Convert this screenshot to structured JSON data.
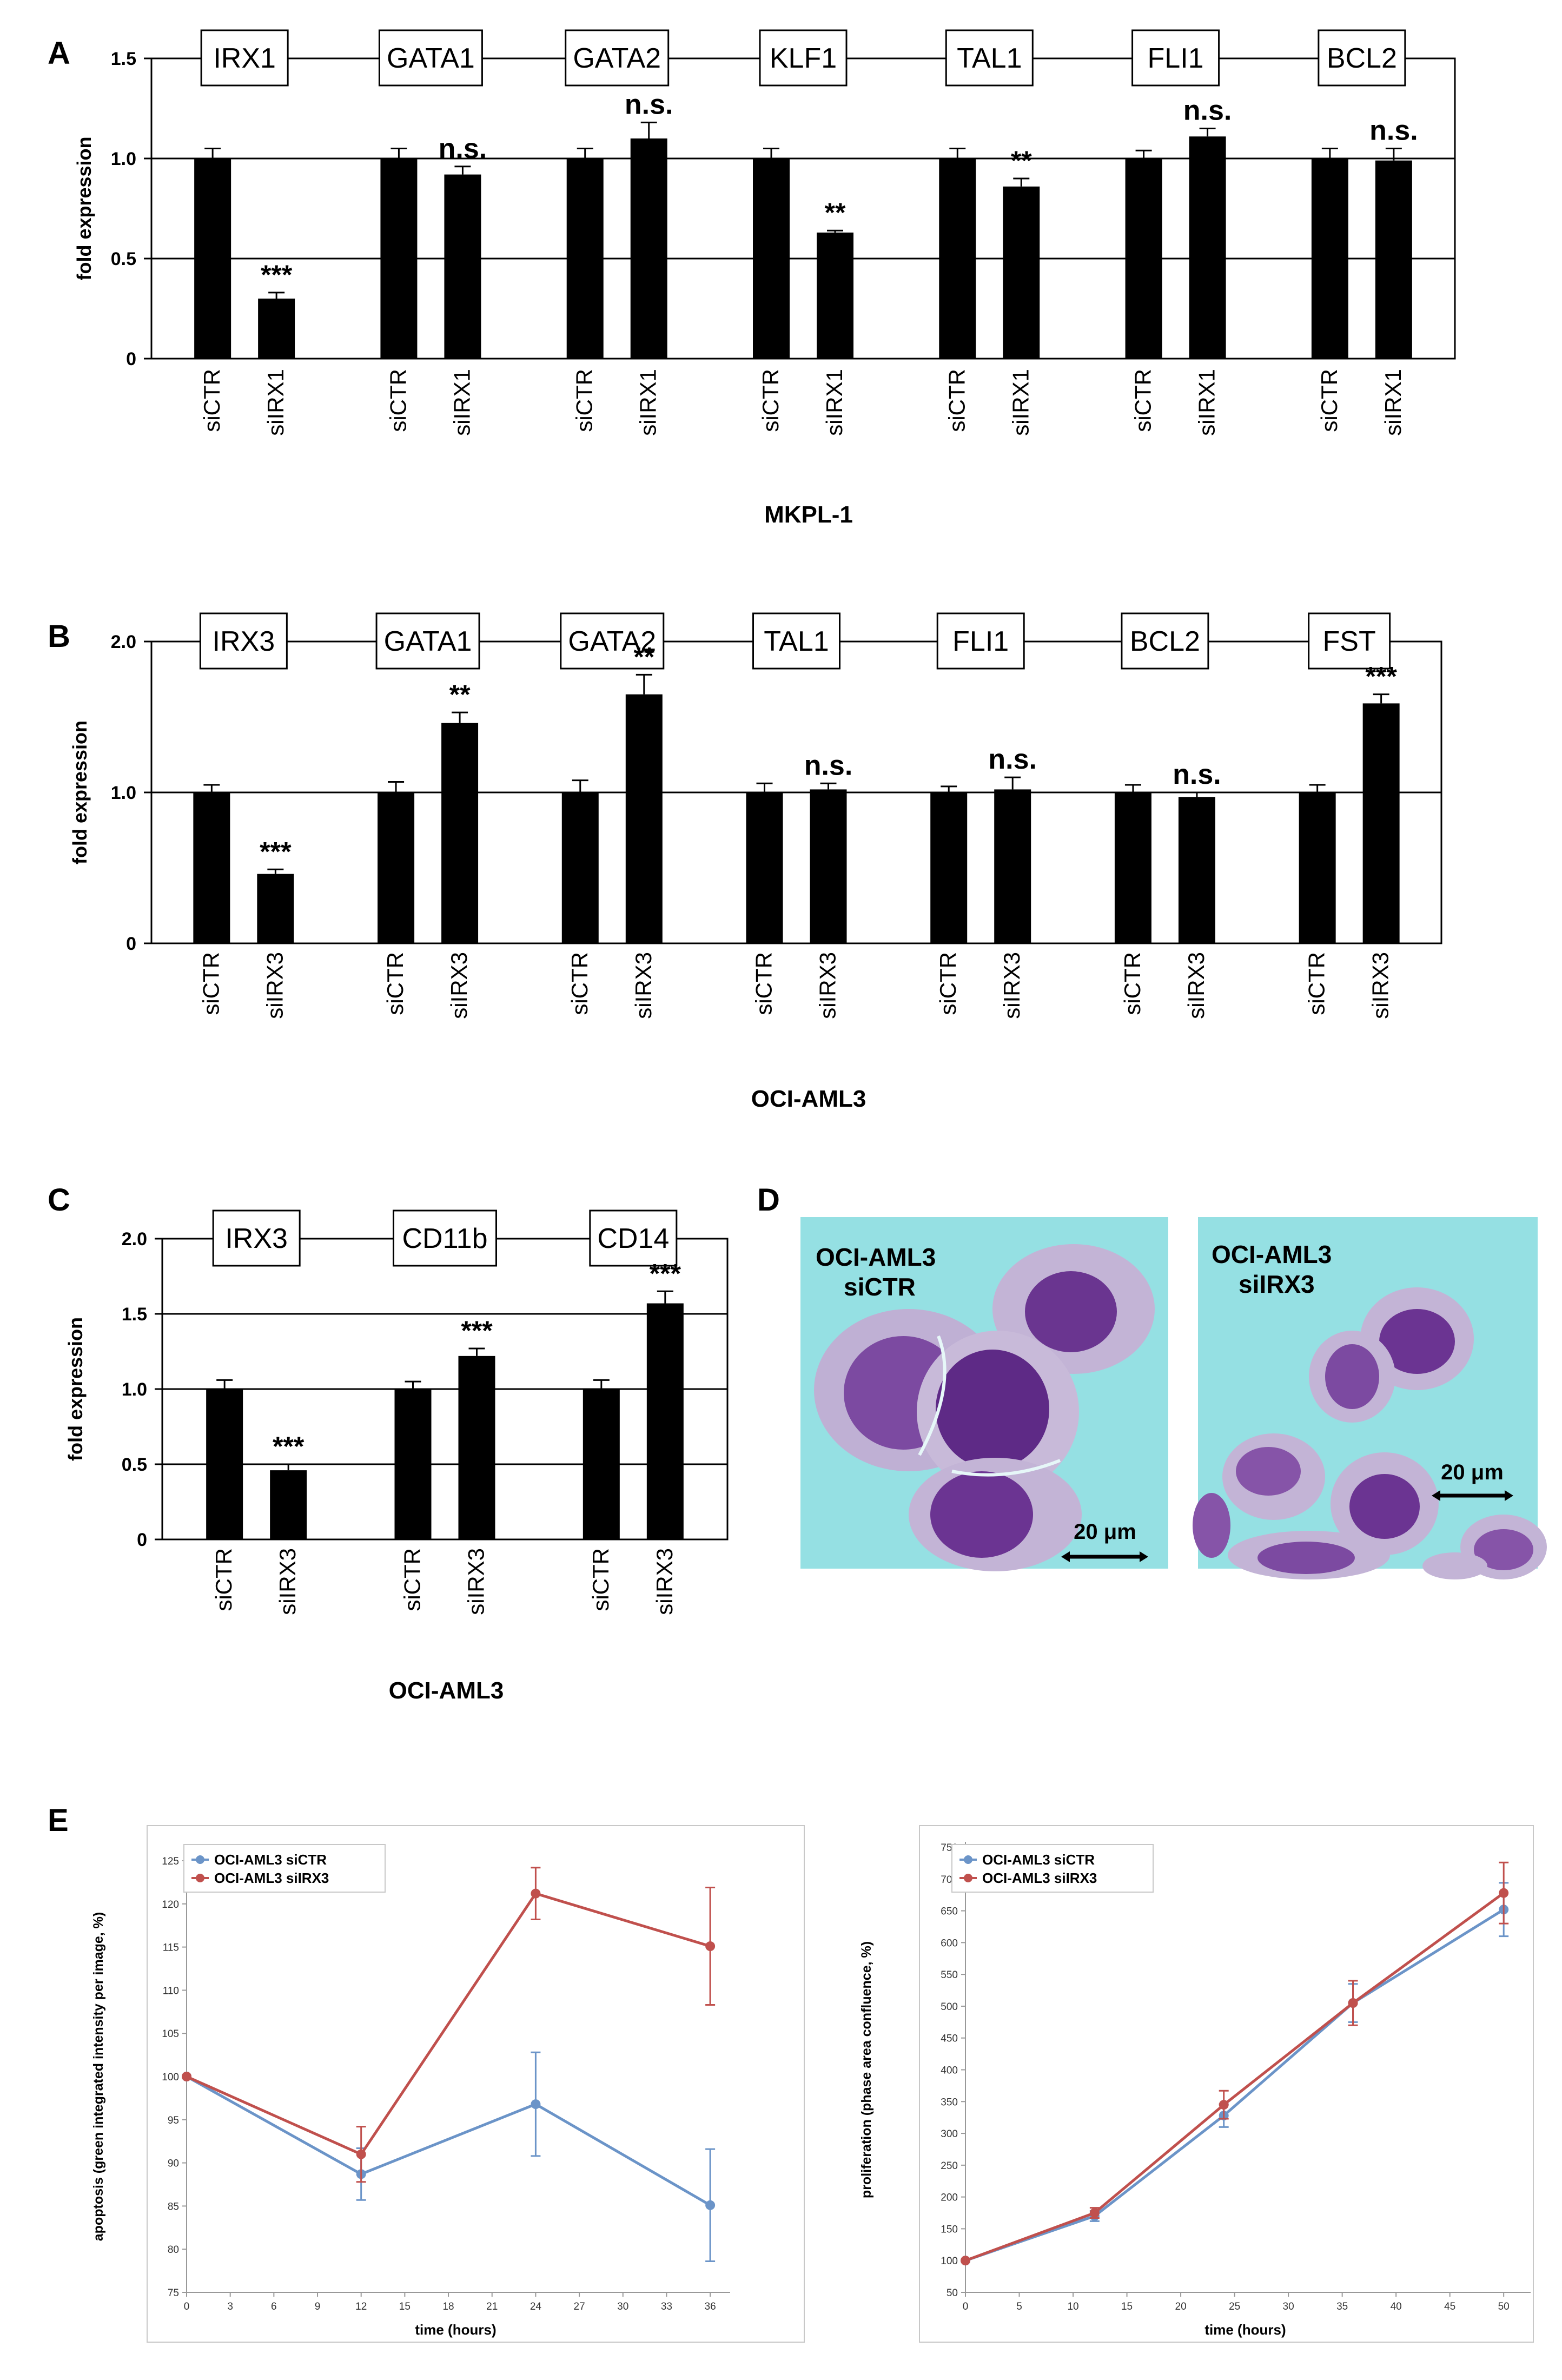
{
  "figure": {
    "panels": {
      "A": "A",
      "B": "B",
      "C": "C",
      "D": "D",
      "E": "E"
    },
    "colors": {
      "bar": "#000000",
      "siCTR_line": "#6b94c8",
      "siIRX3_line": "#c0504d",
      "micro_bg": "#95e0e3",
      "micro_cell": "#8a5fa5",
      "micro_nucleus": "#5b2d83",
      "micro_cyto": "#c7b6d6"
    }
  },
  "chart_data": [
    {
      "panel": "A",
      "type": "bar",
      "title": "MKPL-1",
      "ylabel": "fold expression",
      "ylim": [
        0,
        1.5
      ],
      "yticks": [
        "0",
        "0.5",
        "1.0",
        "1.5"
      ],
      "groups": [
        {
          "gene": "IRX1",
          "categories": [
            "siCTR",
            "siIRX1"
          ],
          "values": [
            1.0,
            0.3
          ],
          "errors": [
            0.05,
            0.03
          ],
          "significance": "***"
        },
        {
          "gene": "GATA1",
          "categories": [
            "siCTR",
            "siIRX1"
          ],
          "values": [
            1.0,
            0.92
          ],
          "errors": [
            0.05,
            0.04
          ],
          "significance": "n.s."
        },
        {
          "gene": "GATA2",
          "categories": [
            "siCTR",
            "siIRX1"
          ],
          "values": [
            1.0,
            1.1
          ],
          "errors": [
            0.05,
            0.08
          ],
          "significance": "n.s."
        },
        {
          "gene": "KLF1",
          "categories": [
            "siCTR",
            "siIRX1"
          ],
          "values": [
            1.0,
            0.63
          ],
          "errors": [
            0.05,
            0.01
          ],
          "significance": "**"
        },
        {
          "gene": "TAL1",
          "categories": [
            "siCTR",
            "siIRX1"
          ],
          "values": [
            1.0,
            0.86
          ],
          "errors": [
            0.05,
            0.04
          ],
          "significance": "**"
        },
        {
          "gene": "FLI1",
          "categories": [
            "siCTR",
            "siIRX1"
          ],
          "values": [
            1.0,
            1.11
          ],
          "errors": [
            0.04,
            0.04
          ],
          "significance": "n.s."
        },
        {
          "gene": "BCL2",
          "categories": [
            "siCTR",
            "siIRX1"
          ],
          "values": [
            1.0,
            0.99
          ],
          "errors": [
            0.05,
            0.06
          ],
          "significance": "n.s."
        }
      ]
    },
    {
      "panel": "B",
      "type": "bar",
      "title": "OCI-AML3",
      "ylabel": "fold expression",
      "ylim": [
        0,
        2.0
      ],
      "yticks": [
        "0",
        "1.0",
        "2.0"
      ],
      "groups": [
        {
          "gene": "IRX3",
          "categories": [
            "siCTR",
            "siIRX3"
          ],
          "values": [
            1.0,
            0.46
          ],
          "errors": [
            0.05,
            0.03
          ],
          "significance": "***"
        },
        {
          "gene": "GATA1",
          "categories": [
            "siCTR",
            "siIRX3"
          ],
          "values": [
            1.0,
            1.46
          ],
          "errors": [
            0.07,
            0.07
          ],
          "significance": "**"
        },
        {
          "gene": "GATA2",
          "categories": [
            "siCTR",
            "siIRX3"
          ],
          "values": [
            1.0,
            1.65
          ],
          "errors": [
            0.08,
            0.13
          ],
          "significance": "**"
        },
        {
          "gene": "TAL1",
          "categories": [
            "siCTR",
            "siIRX3"
          ],
          "values": [
            1.0,
            1.02
          ],
          "errors": [
            0.06,
            0.04
          ],
          "significance": "n.s."
        },
        {
          "gene": "FLI1",
          "categories": [
            "siCTR",
            "siIRX3"
          ],
          "values": [
            1.0,
            1.02
          ],
          "errors": [
            0.04,
            0.08
          ],
          "significance": "n.s."
        },
        {
          "gene": "BCL2",
          "categories": [
            "siCTR",
            "siIRX3"
          ],
          "values": [
            1.0,
            0.97
          ],
          "errors": [
            0.05,
            0.03
          ],
          "significance": "n.s."
        },
        {
          "gene": "FST",
          "categories": [
            "siCTR",
            "siIRX3"
          ],
          "values": [
            1.0,
            1.59
          ],
          "errors": [
            0.05,
            0.06
          ],
          "significance": "***"
        }
      ]
    },
    {
      "panel": "C",
      "type": "bar",
      "title": "OCI-AML3",
      "ylabel": "fold expression",
      "ylim": [
        0,
        2.0
      ],
      "yticks": [
        "0",
        "0.5",
        "1.0",
        "1.5",
        "2.0"
      ],
      "groups": [
        {
          "gene": "IRX3",
          "categories": [
            "siCTR",
            "siIRX3"
          ],
          "values": [
            1.0,
            0.46
          ],
          "errors": [
            0.06,
            0.04
          ],
          "significance": "***"
        },
        {
          "gene": "CD11b",
          "categories": [
            "siCTR",
            "siIRX3"
          ],
          "values": [
            1.0,
            1.22
          ],
          "errors": [
            0.05,
            0.05
          ],
          "significance": "***"
        },
        {
          "gene": "CD14",
          "categories": [
            "siCTR",
            "siIRX3"
          ],
          "values": [
            1.0,
            1.57
          ],
          "errors": [
            0.06,
            0.08
          ],
          "significance": "***"
        }
      ]
    },
    {
      "panel": "E-left",
      "type": "line",
      "xlabel": "time (hours)",
      "ylabel": "apoptosis (green integrated intensity per image, %)",
      "xlim": [
        0,
        37
      ],
      "ylim": [
        75,
        125
      ],
      "xticks": [
        0,
        3,
        6,
        9,
        12,
        15,
        18,
        21,
        24,
        27,
        30,
        33,
        36
      ],
      "yticks": [
        75,
        80,
        85,
        90,
        95,
        100,
        105,
        110,
        115,
        120,
        125
      ],
      "legend": [
        "OCI-AML3 siCTR",
        "OCI-AML3 siIRX3"
      ],
      "series": [
        {
          "name": "OCI-AML3 siCTR",
          "x": [
            0,
            12,
            24,
            36
          ],
          "values": [
            100,
            88.7,
            96.8,
            85.1
          ],
          "errors": [
            0,
            3.0,
            6.0,
            6.5
          ]
        },
        {
          "name": "OCI-AML3 siIRX3",
          "x": [
            0,
            12,
            24,
            36
          ],
          "values": [
            100,
            91.0,
            121.2,
            115.1
          ],
          "errors": [
            0,
            3.2,
            3.0,
            6.8
          ]
        }
      ]
    },
    {
      "panel": "E-right",
      "type": "line",
      "xlabel": "time (hours)",
      "ylabel": "proliferation (phase area confluence, %)",
      "xlim": [
        0,
        52
      ],
      "ylim": [
        50,
        750
      ],
      "xticks": [
        0,
        5,
        10,
        15,
        20,
        25,
        30,
        35,
        40,
        45,
        50
      ],
      "yticks": [
        50,
        100,
        150,
        200,
        250,
        300,
        350,
        400,
        450,
        500,
        550,
        600,
        650,
        700,
        750
      ],
      "legend": [
        "OCI-AML3 siCTR",
        "OCI-AML3 siIRX3"
      ],
      "series": [
        {
          "name": "OCI-AML3 siCTR",
          "x": [
            0,
            12,
            24,
            36,
            50
          ],
          "values": [
            100,
            170,
            328,
            505,
            652
          ],
          "errors": [
            0,
            8,
            18,
            30,
            42
          ]
        },
        {
          "name": "OCI-AML3 siIRX3",
          "x": [
            0,
            12,
            24,
            36,
            50
          ],
          "values": [
            100,
            175,
            345,
            505,
            678
          ],
          "errors": [
            0,
            8,
            22,
            35,
            48
          ]
        }
      ]
    }
  ],
  "micrographs": [
    {
      "label_line1": "OCI-AML3",
      "label_line2": "siCTR",
      "scalebar": "20 μm"
    },
    {
      "label_line1": "OCI-AML3",
      "label_line2": "siIRX3",
      "scalebar": "20 μm"
    }
  ]
}
